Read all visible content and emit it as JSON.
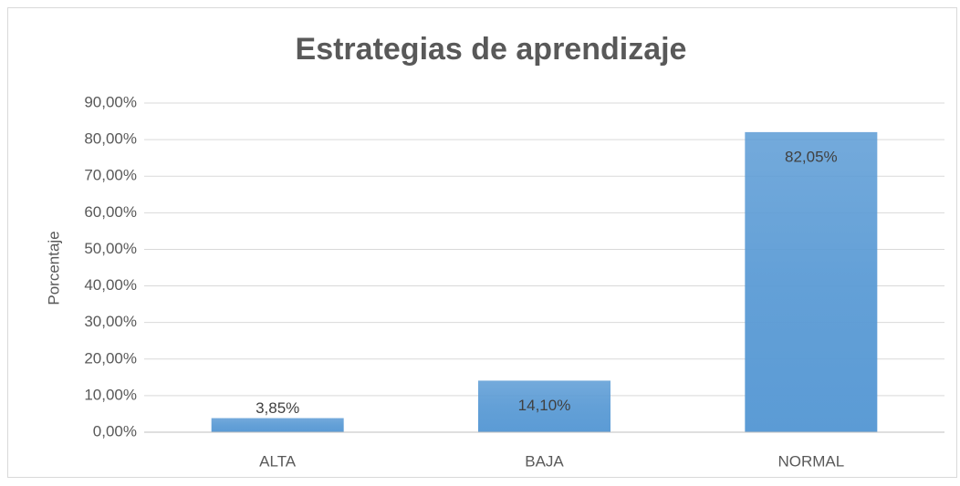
{
  "chart_data": {
    "type": "bar",
    "title": "Estrategias de aprendizaje",
    "y_label": "Porcentaje",
    "categories": [
      "ALTA",
      "BAJA",
      "NORMAL"
    ],
    "values": [
      3.85,
      14.1,
      82.05
    ],
    "value_labels": [
      "3,85%",
      "14,10%",
      "82,05%"
    ],
    "color": "#5b9bd5",
    "ylim": [
      0,
      90
    ],
    "yticks": [
      {
        "value": 0,
        "label": "0,00%"
      },
      {
        "value": 10,
        "label": "10,00%"
      },
      {
        "value": 20,
        "label": "20,00%"
      },
      {
        "value": 30,
        "label": "30,00%"
      },
      {
        "value": 40,
        "label": "40,00%"
      },
      {
        "value": 50,
        "label": "50,00%"
      },
      {
        "value": 60,
        "label": "60,00%"
      },
      {
        "value": 70,
        "label": "70,00%"
      },
      {
        "value": 80,
        "label": "80,00%"
      },
      {
        "value": 90,
        "label": "90,00%"
      }
    ],
    "grid": true
  }
}
